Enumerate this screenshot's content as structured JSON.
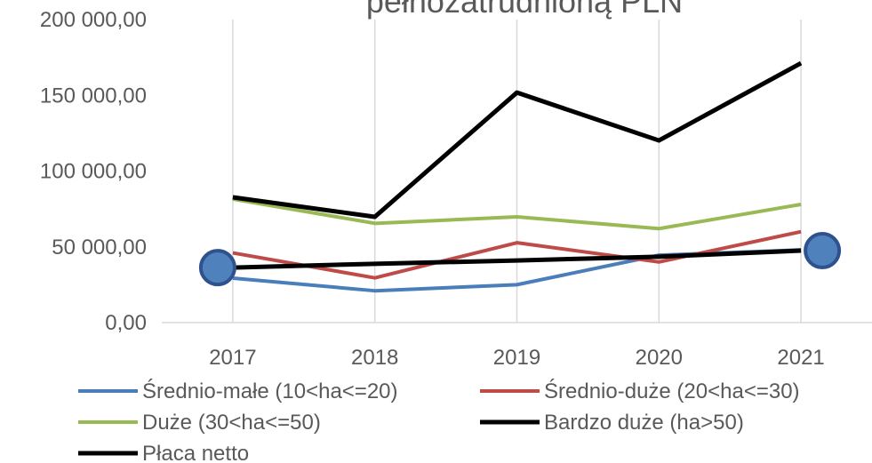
{
  "chart_data": {
    "type": "line",
    "title": "pełnozatrudnioną PLN",
    "categories": [
      "2017",
      "2018",
      "2019",
      "2020",
      "2021"
    ],
    "series": [
      {
        "name": "Średnio-małe (10<ha<=20)",
        "color": "#4a7ebb",
        "values": [
          29300,
          21000,
          25000,
          44500,
          48000
        ]
      },
      {
        "name": "Średnio-duże (20<ha<=30)",
        "color": "#be4b48",
        "values": [
          46000,
          29500,
          52700,
          40000,
          60000
        ]
      },
      {
        "name": "Duże (30<ha<=50)",
        "color": "#98b954",
        "values": [
          81500,
          65500,
          69800,
          62000,
          78000
        ]
      },
      {
        "name": "Bardzo duże (ha>50)",
        "color": "#000000",
        "values": [
          82700,
          69800,
          151800,
          120200,
          171200
        ]
      },
      {
        "name": "Płaca netto",
        "color": "#000000",
        "values": [
          36300,
          38800,
          41000,
          43500,
          47500
        ],
        "marker_color": "#4f81bd"
      }
    ],
    "ylim": [
      0,
      200000
    ],
    "yticks": [
      {
        "value": 0,
        "label": "0,00"
      },
      {
        "value": 50000,
        "label": "50 000,00"
      },
      {
        "value": 100000,
        "label": "100 000,00"
      },
      {
        "value": 150000,
        "label": "150 000,00"
      },
      {
        "value": 200000,
        "label": "200 000,00"
      }
    ],
    "grid": "x",
    "legend": "bottom"
  }
}
